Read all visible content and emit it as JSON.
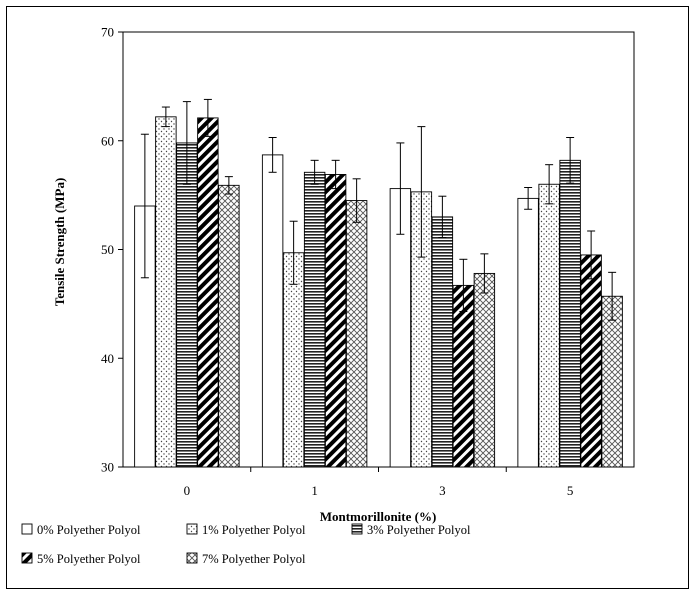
{
  "chart_data": {
    "type": "bar",
    "title": "",
    "xlabel": "Montmorillonite (%)",
    "ylabel": "Tensile Strength (MPa)",
    "ylim": [
      30,
      70
    ],
    "yticks": [
      30,
      40,
      50,
      60,
      70
    ],
    "categories": [
      "0",
      "1",
      "3",
      "5"
    ],
    "grid": false,
    "legend_position": "bottom",
    "series": [
      {
        "name": "0% Polyether Polyol",
        "pattern": "plain",
        "values": [
          54.0,
          58.7,
          55.6,
          54.7
        ],
        "errors": [
          6.6,
          1.6,
          4.2,
          1.0
        ]
      },
      {
        "name": "1% Polyether Polyol",
        "pattern": "dots",
        "values": [
          62.2,
          49.7,
          55.3,
          56.0
        ],
        "errors": [
          0.9,
          2.9,
          6.0,
          1.8
        ]
      },
      {
        "name": "3% Polyether Polyol",
        "pattern": "hlines",
        "values": [
          59.8,
          57.1,
          53.0,
          58.2
        ],
        "errors": [
          3.8,
          1.1,
          1.9,
          2.1
        ]
      },
      {
        "name": "5% Polyether Polyol",
        "pattern": "diagonal",
        "values": [
          62.1,
          56.9,
          46.7,
          49.5
        ],
        "errors": [
          1.7,
          1.3,
          2.4,
          2.2
        ]
      },
      {
        "name": "7% Polyether Polyol",
        "pattern": "crosshatch",
        "values": [
          55.9,
          54.5,
          47.8,
          45.7
        ],
        "errors": [
          0.8,
          2.0,
          1.8,
          2.2
        ]
      }
    ]
  }
}
